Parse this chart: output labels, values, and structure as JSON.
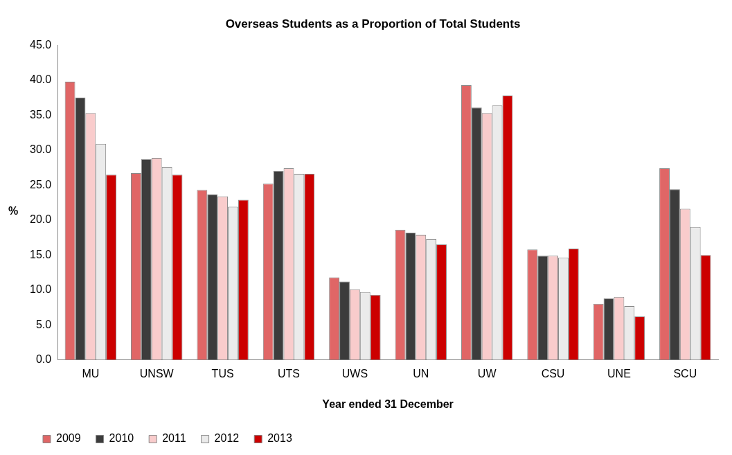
{
  "chart_data": {
    "type": "bar",
    "title": "Overseas Students as a Proportion of Total Students",
    "xlabel": "Year ended 31 December",
    "ylabel": "%",
    "categories": [
      "MU",
      "UNSW",
      "TUS",
      "UTS",
      "UWS",
      "UN",
      "UW",
      "CSU",
      "UNE",
      "SCU"
    ],
    "series": [
      {
        "name": "2009",
        "color": "#e06666",
        "values": [
          39.8,
          26.7,
          24.3,
          25.2,
          11.8,
          18.6,
          39.3,
          15.8,
          8.0,
          27.4
        ]
      },
      {
        "name": "2010",
        "color": "#3c3c3c",
        "values": [
          37.5,
          28.7,
          23.7,
          27.0,
          11.2,
          18.2,
          36.1,
          14.9,
          8.8,
          24.4
        ]
      },
      {
        "name": "2011",
        "color": "#f9cccc",
        "values": [
          35.3,
          28.9,
          23.4,
          27.4,
          10.1,
          17.9,
          35.3,
          14.9,
          9.0,
          21.6
        ]
      },
      {
        "name": "2012",
        "color": "#ebebeb",
        "values": [
          30.9,
          27.6,
          21.9,
          26.6,
          9.7,
          17.3,
          36.4,
          14.6,
          7.7,
          19.0
        ]
      },
      {
        "name": "2013",
        "color": "#cc0000",
        "values": [
          26.5,
          26.5,
          22.9,
          26.6,
          9.3,
          16.5,
          37.8,
          15.9,
          6.2,
          15.0
        ]
      }
    ],
    "ylim": [
      0,
      45
    ],
    "yticks": [
      {
        "value": 0,
        "label": "0.0"
      },
      {
        "value": 5,
        "label": "5.0"
      },
      {
        "value": 10,
        "label": "10.0"
      },
      {
        "value": 15,
        "label": "15.0"
      },
      {
        "value": 20,
        "label": "20.0"
      },
      {
        "value": 25,
        "label": "25.0"
      },
      {
        "value": 30,
        "label": "30.0"
      },
      {
        "value": 35,
        "label": "35.0"
      },
      {
        "value": 40,
        "label": "40.0"
      },
      {
        "value": 45,
        "label": "45.0"
      }
    ],
    "grid": false,
    "legend": "bottom"
  }
}
